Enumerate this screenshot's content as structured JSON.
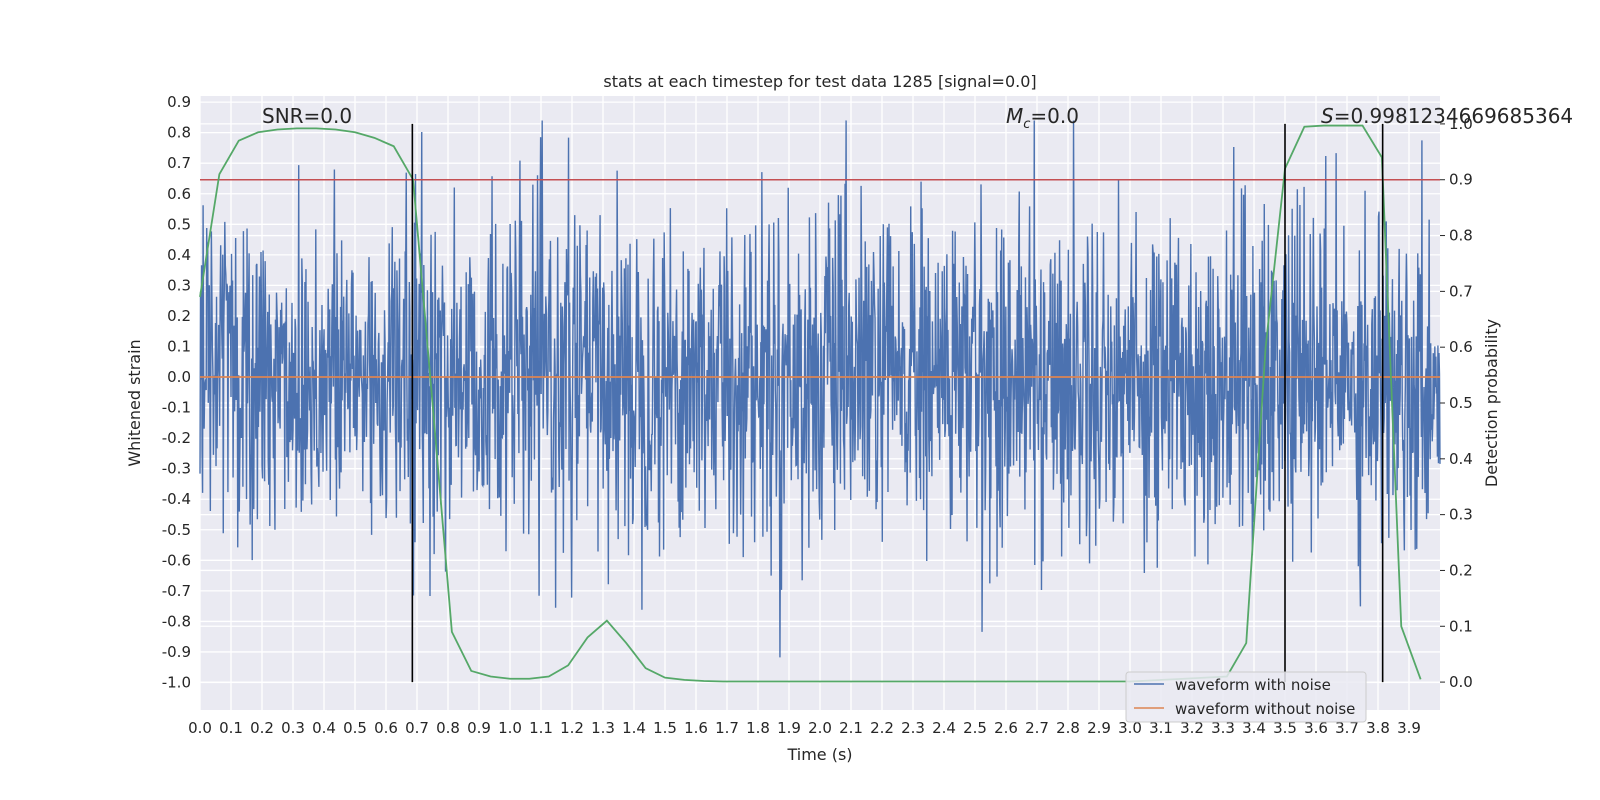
{
  "chart_data": {
    "type": "line",
    "title": "stats at each timestep for test data 1285 [signal=0.0]",
    "xlabel": "Time (s)",
    "ylabel": "Whitened strain",
    "ylabel_right": "Detection probability",
    "xlim": [
      0.0,
      4.0
    ],
    "ylim": [
      -1.09,
      0.92
    ],
    "ylim_right": [
      -0.05,
      1.05
    ],
    "x_ticks": [
      "0.0",
      "0.1",
      "0.2",
      "0.3",
      "0.4",
      "0.5",
      "0.6",
      "0.7",
      "0.8",
      "0.9",
      "1.0",
      "1.1",
      "1.2",
      "1.3",
      "1.4",
      "1.5",
      "1.6",
      "1.7",
      "1.8",
      "1.9",
      "2.0",
      "2.1",
      "2.2",
      "2.3",
      "2.4",
      "2.5",
      "2.6",
      "2.7",
      "2.8",
      "2.9",
      "3.0",
      "3.1",
      "3.2",
      "3.3",
      "3.4",
      "3.5",
      "3.6",
      "3.7",
      "3.8",
      "3.9"
    ],
    "y_ticks": [
      "0.9",
      "0.8",
      "0.7",
      "0.6",
      "0.5",
      "0.4",
      "0.3",
      "0.2",
      "0.1",
      "0.0",
      "-0.1",
      "-0.2",
      "-0.3",
      "-0.4",
      "-0.5",
      "-0.6",
      "-0.7",
      "-0.8",
      "-0.9",
      "-1.0"
    ],
    "y_ticks_right": [
      "1.0",
      "0.9",
      "0.8",
      "0.7",
      "0.6",
      "0.5",
      "0.4",
      "0.3",
      "0.2",
      "0.1",
      "0.0"
    ],
    "annotations": {
      "snr": "SNR=0.0",
      "mc_symbol": "M",
      "mc_subscript": "c",
      "mc_value": "=0.0",
      "s_symbol": "S",
      "s_value": "=0.9981234669685364"
    },
    "threshold": 0.9,
    "vlines_x": [
      0.685,
      3.5,
      3.815
    ],
    "series": [
      {
        "name": "waveform with noise",
        "color": "#4c72b0",
        "kind": "noise",
        "amplitude": 0.27,
        "y_min": -1.0,
        "y_max": 0.84
      },
      {
        "name": "waveform without noise",
        "color": "#dd8452",
        "kind": "constant",
        "value": 0.0
      },
      {
        "name": "detection probability",
        "color": "#55a868",
        "axis": "right",
        "x": [
          0.0,
          0.0625,
          0.125,
          0.1875,
          0.25,
          0.3125,
          0.375,
          0.4375,
          0.5,
          0.5625,
          0.625,
          0.6875,
          0.75,
          0.8125,
          0.875,
          0.9375,
          1.0,
          1.0625,
          1.125,
          1.1875,
          1.25,
          1.3125,
          1.375,
          1.4375,
          1.5,
          1.5625,
          1.625,
          1.6875,
          1.75,
          3.0,
          3.3125,
          3.375,
          3.4375,
          3.5,
          3.5625,
          3.625,
          3.6875,
          3.75,
          3.8125,
          3.875,
          3.9375
        ],
        "values": [
          0.69,
          0.91,
          0.97,
          0.985,
          0.99,
          0.992,
          0.992,
          0.99,
          0.985,
          0.975,
          0.96,
          0.9,
          0.5,
          0.09,
          0.02,
          0.01,
          0.006,
          0.006,
          0.01,
          0.03,
          0.08,
          0.11,
          0.07,
          0.025,
          0.008,
          0.004,
          0.002,
          0.001,
          0.001,
          0.001,
          0.01,
          0.07,
          0.6,
          0.92,
          0.995,
          0.997,
          0.997,
          0.997,
          0.94,
          0.1,
          0.005
        ]
      },
      {
        "name": "threshold",
        "color": "#c44e52",
        "axis": "right",
        "value": 0.9
      }
    ]
  },
  "legend": {
    "items": [
      {
        "label": "waveform with noise",
        "color": "#4c72b0"
      },
      {
        "label": "waveform without noise",
        "color": "#dd8452"
      }
    ]
  }
}
